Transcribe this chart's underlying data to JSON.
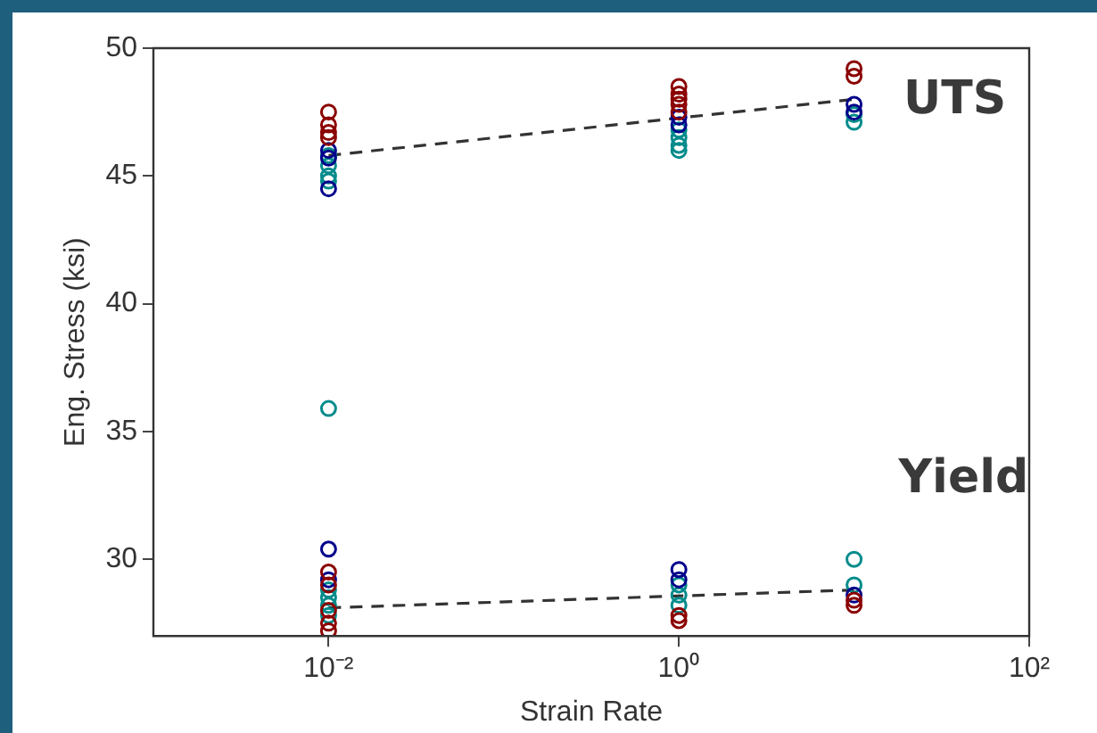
{
  "chart_data": {
    "type": "scatter",
    "xlabel": "Strain Rate",
    "ylabel": "Eng. Stress (ksi)",
    "log": "x",
    "xlim": [
      0.001,
      100
    ],
    "xticks": [
      {
        "value": 0.01,
        "label": "10⁻²"
      },
      {
        "value": 1,
        "label": "10⁰"
      },
      {
        "value": 100,
        "label": "10²"
      }
    ],
    "ylim": [
      27,
      50
    ],
    "yticks": [
      30,
      35,
      40,
      45,
      50
    ],
    "grid": false,
    "legend": false,
    "marker": "circle",
    "series": [
      {
        "color": "#8b0000",
        "x": [
          0.01,
          0.01,
          0.01,
          0.01,
          0.01,
          0.01,
          0.01,
          0.01,
          0.01,
          1,
          1,
          1,
          1,
          1,
          1,
          1,
          10,
          10,
          10,
          10
        ],
        "values": [
          47.5,
          47,
          46.7,
          46.5,
          29.5,
          29,
          28,
          27.5,
          27.2,
          48.5,
          48.2,
          48,
          47.8,
          47.5,
          27.8,
          27.6,
          49.2,
          48.9,
          28.4,
          28.2
        ]
      },
      {
        "color": "#00008b",
        "x": [
          0.01,
          0.01,
          0.01,
          0.01,
          0.01,
          1,
          1,
          1,
          1,
          10,
          10,
          10
        ],
        "values": [
          46,
          45.7,
          44.5,
          30.4,
          29.2,
          47.3,
          47,
          29.6,
          29.2,
          47.8,
          47.5,
          28.6
        ]
      },
      {
        "color": "#008b8b",
        "x": [
          0.01,
          0.01,
          0.01,
          0.01,
          0.01,
          0.01,
          0.01,
          0.01,
          0.01,
          1,
          1,
          1,
          1,
          1,
          1,
          1,
          10,
          10,
          10,
          10
        ],
        "values": [
          45.8,
          45.4,
          45,
          44.8,
          35.9,
          28.8,
          28.5,
          28.2,
          27.8,
          46.8,
          46.5,
          46.2,
          46,
          29,
          28.6,
          28.2,
          47.4,
          47.1,
          30,
          29
        ]
      },
      {
        "type": "line",
        "color": "#333333",
        "marker": "none",
        "line_style": "dashed",
        "x": [
          0.01,
          10
        ],
        "values": [
          45.8,
          48
        ]
      },
      {
        "type": "line",
        "color": "#333333",
        "marker": "none",
        "line_style": "dashed",
        "x": [
          0.01,
          10
        ],
        "values": [
          28.1,
          28.8
        ]
      }
    ],
    "annotations": [
      "UTS",
      "Yield"
    ]
  }
}
